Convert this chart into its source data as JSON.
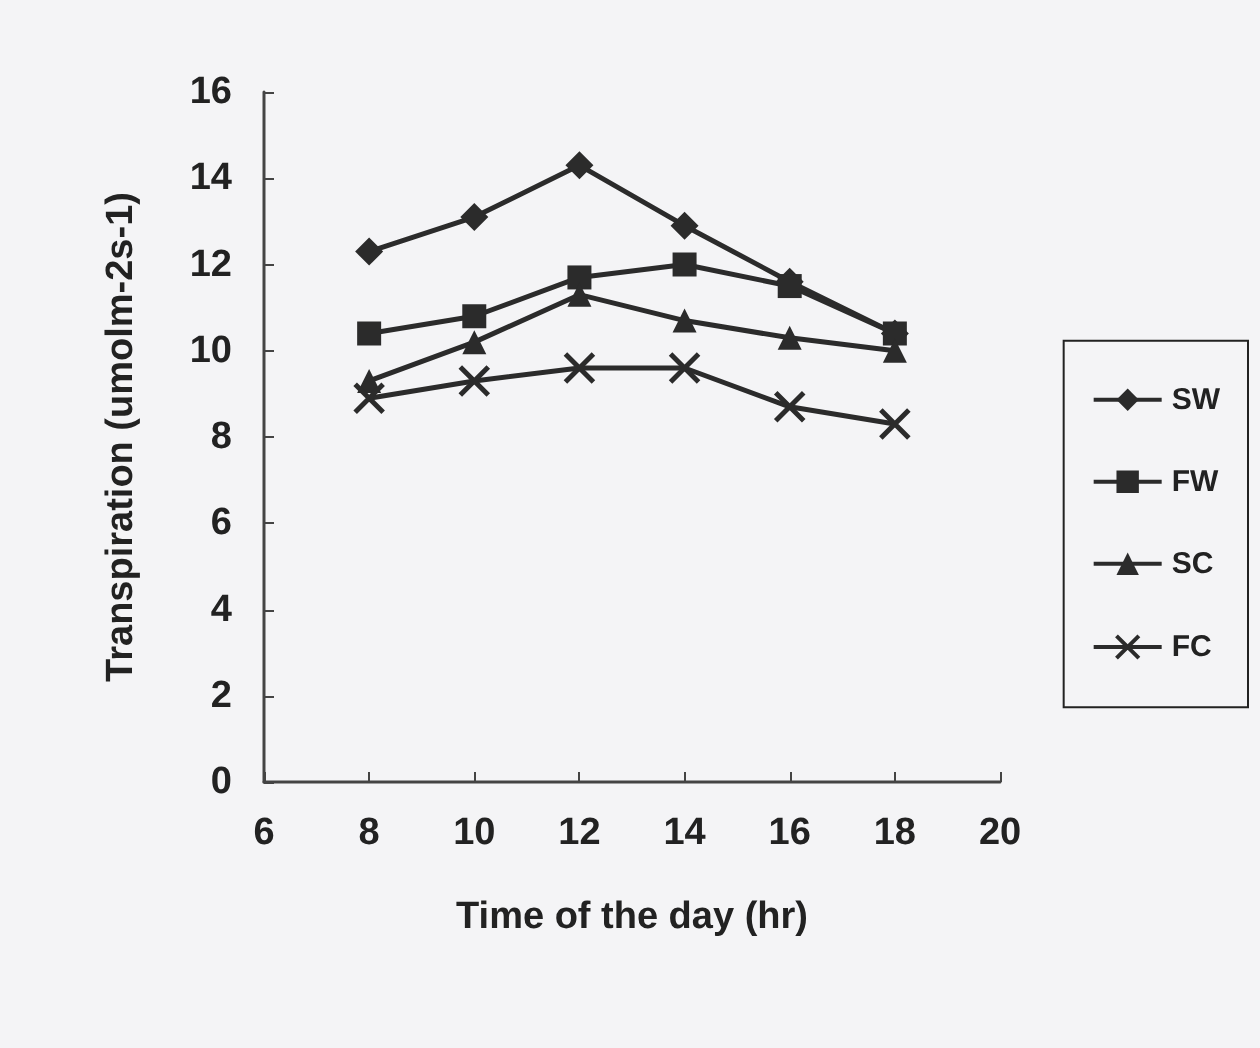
{
  "chart_data": {
    "type": "line",
    "xlabel": "Time of the day (hr)",
    "ylabel": "Transpiration (umolm-2s-1)",
    "x": [
      8,
      10,
      12,
      14,
      16,
      18
    ],
    "series": [
      {
        "name": "SW",
        "color": "#2b2b2b",
        "marker": "diamond",
        "values": [
          12.3,
          13.1,
          14.3,
          12.9,
          11.6,
          10.4
        ]
      },
      {
        "name": "FW",
        "color": "#2b2b2b",
        "marker": "square",
        "values": [
          10.4,
          10.8,
          11.7,
          12.0,
          11.5,
          10.4
        ]
      },
      {
        "name": "SC",
        "color": "#2b2b2b",
        "marker": "triangle",
        "values": [
          9.3,
          10.2,
          11.3,
          10.7,
          10.3,
          10.0
        ]
      },
      {
        "name": "FC",
        "color": "#2b2b2b",
        "marker": "cross",
        "values": [
          8.9,
          9.3,
          9.6,
          9.6,
          8.7,
          8.3
        ]
      }
    ],
    "xlim": [
      6,
      20
    ],
    "xticks": [
      6,
      8,
      10,
      12,
      14,
      16,
      18,
      20
    ],
    "ylim": [
      0,
      16
    ],
    "yticks": [
      0,
      2,
      4,
      6,
      8,
      10,
      12,
      14,
      16
    ],
    "grid": false,
    "legend": "right"
  }
}
